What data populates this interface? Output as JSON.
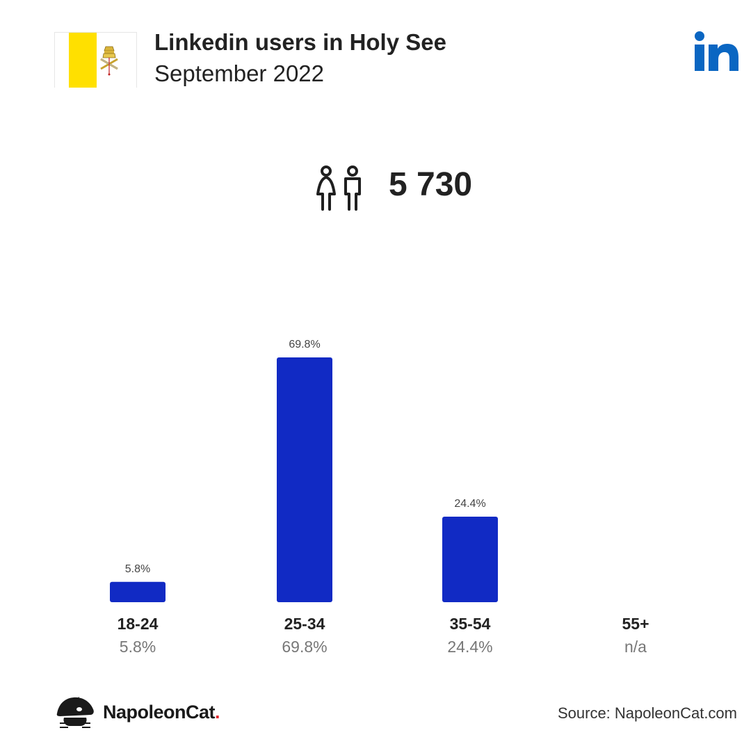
{
  "header": {
    "title": "Linkedin users in Holy See",
    "subtitle": "September 2022"
  },
  "flag": {
    "color_yellow": "#FFE000",
    "color_white": "#FFFFFF"
  },
  "brand_logo": {
    "text": "in",
    "color": "#0A66C2"
  },
  "users": {
    "icon": "male-female-users-icon",
    "total": "5 730"
  },
  "chart_data": {
    "type": "bar",
    "categories": [
      "18-24",
      "25-34",
      "35-54",
      "55+"
    ],
    "values": [
      5.8,
      69.8,
      24.4,
      null
    ],
    "value_labels": [
      "5.8%",
      "69.8%",
      "24.4%",
      ""
    ],
    "category_values": [
      "5.8%",
      "69.8%",
      "24.4%",
      "n/a"
    ],
    "bar_color": "#112AC4",
    "ylim": [
      0,
      69.8
    ],
    "grid": false,
    "title": "",
    "xlabel": "",
    "ylabel": ""
  },
  "footer": {
    "logo_name": "NapoleonCat",
    "logo_dot": ".",
    "source": "Source: NapoleonCat.com"
  }
}
